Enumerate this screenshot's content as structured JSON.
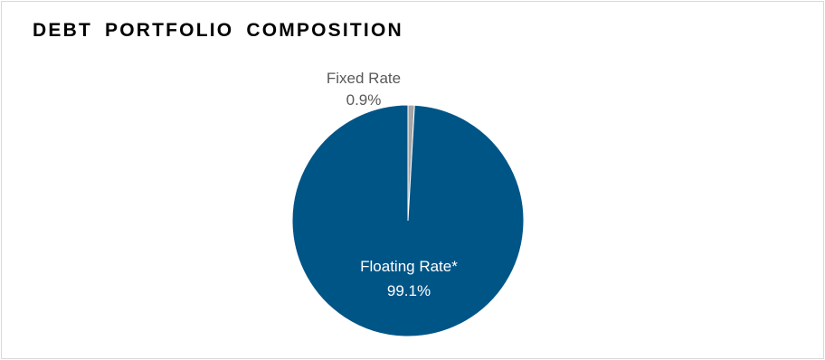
{
  "chart_data": {
    "type": "pie",
    "title": "DEBT PORTFOLIO COMPOSITION",
    "slices": [
      {
        "name": "Fixed Rate",
        "value": 0.9,
        "value_label": "0.9%",
        "color": "#a6a6a6"
      },
      {
        "name": "Floating Rate*",
        "value": 99.1,
        "value_label": "99.1%",
        "color": "#005587"
      }
    ],
    "legend": "none"
  }
}
